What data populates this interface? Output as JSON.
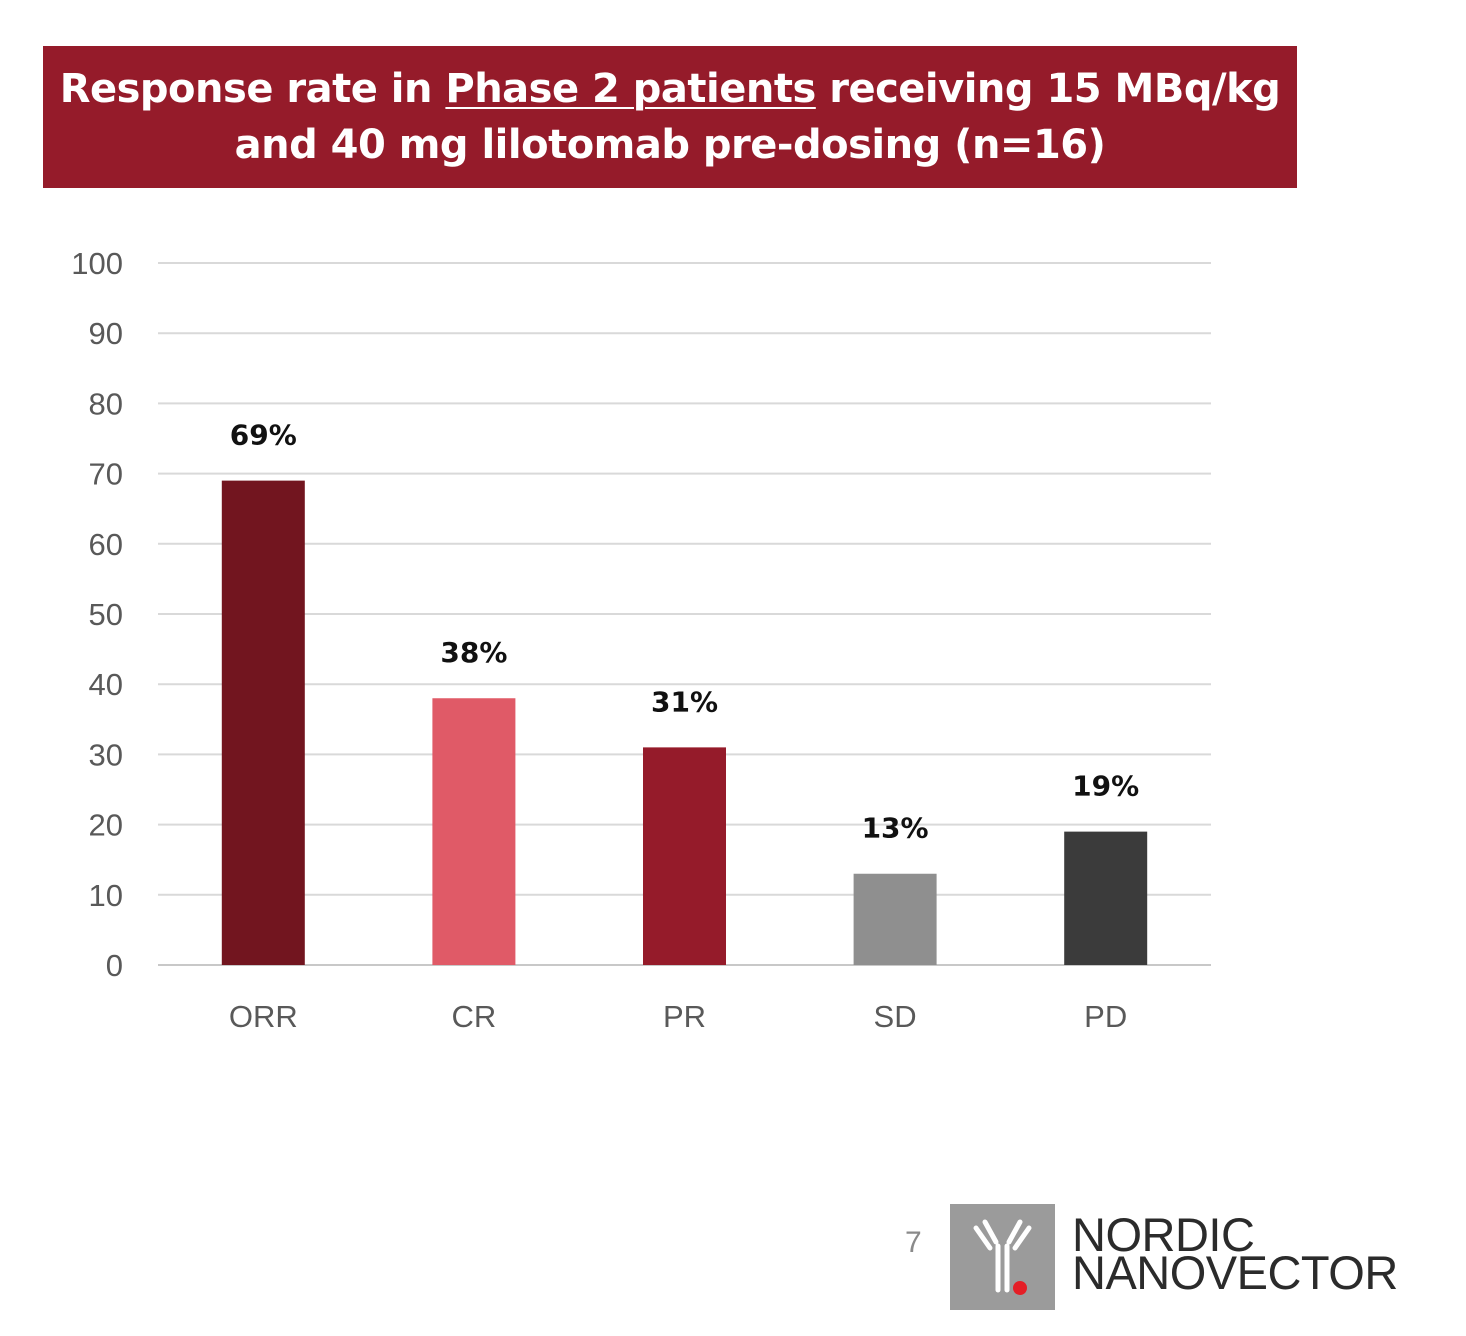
{
  "title": {
    "line1_before": "Response rate in ",
    "line1_underlined": "Phase 2 patients",
    "line1_after": " receiving 15 MBq/kg",
    "line2": "and 40 mg lilotomab pre-dosing (n=16)",
    "background_color": "#951b2a"
  },
  "chart_data": {
    "type": "bar",
    "categories": [
      "ORR",
      "CR",
      "PR",
      "SD",
      "PD"
    ],
    "values": [
      69,
      38,
      31,
      13,
      19
    ],
    "data_labels": [
      "69%",
      "38%",
      "31%",
      "13%",
      "19%"
    ],
    "colors": [
      "#72151f",
      "#e05a67",
      "#951b2a",
      "#8f8f8f",
      "#3b3b3b"
    ],
    "ylim": [
      0,
      100
    ],
    "yticks": [
      0,
      10,
      20,
      30,
      40,
      50,
      60,
      70,
      80,
      90,
      100
    ],
    "grid": true,
    "legend": "none",
    "xlabel": "",
    "ylabel": ""
  },
  "footer": {
    "page_number": "7",
    "logo_line1": "NORDIC",
    "logo_line2": "NANOVECTOR",
    "logo_accent_color": "#e41e26"
  }
}
